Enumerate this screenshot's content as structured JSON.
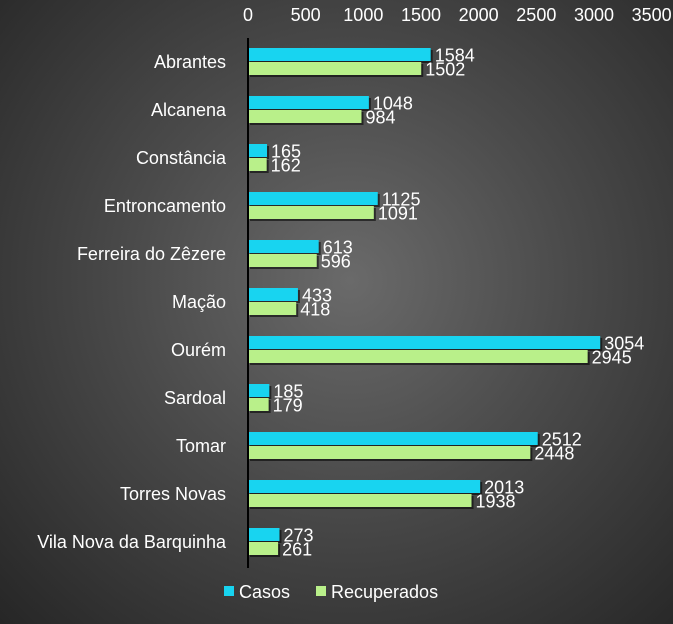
{
  "chart_data": {
    "type": "bar",
    "orientation": "horizontal",
    "categories": [
      "Abrantes",
      "Alcanena",
      "Constância",
      "Entroncamento",
      "Ferreira do Zêzere",
      "Mação",
      "Ourém",
      "Sardoal",
      "Tomar",
      "Torres Novas",
      "Vila Nova da Barquinha"
    ],
    "series": [
      {
        "name": "Casos",
        "color": "#18d4f0",
        "values": [
          1584,
          1048,
          165,
          1125,
          613,
          433,
          3054,
          185,
          2512,
          2013,
          273
        ]
      },
      {
        "name": "Recuperados",
        "color": "#b9f08a",
        "values": [
          1502,
          984,
          162,
          1091,
          596,
          418,
          2945,
          179,
          2448,
          1938,
          261
        ]
      }
    ],
    "xlim": [
      0,
      3500
    ],
    "xticks": [
      0,
      500,
      1000,
      1500,
      2000,
      2500,
      3000,
      3500
    ],
    "x_axis_position": "top",
    "legend_position": "bottom-left",
    "grid": false,
    "data_labels": true
  }
}
